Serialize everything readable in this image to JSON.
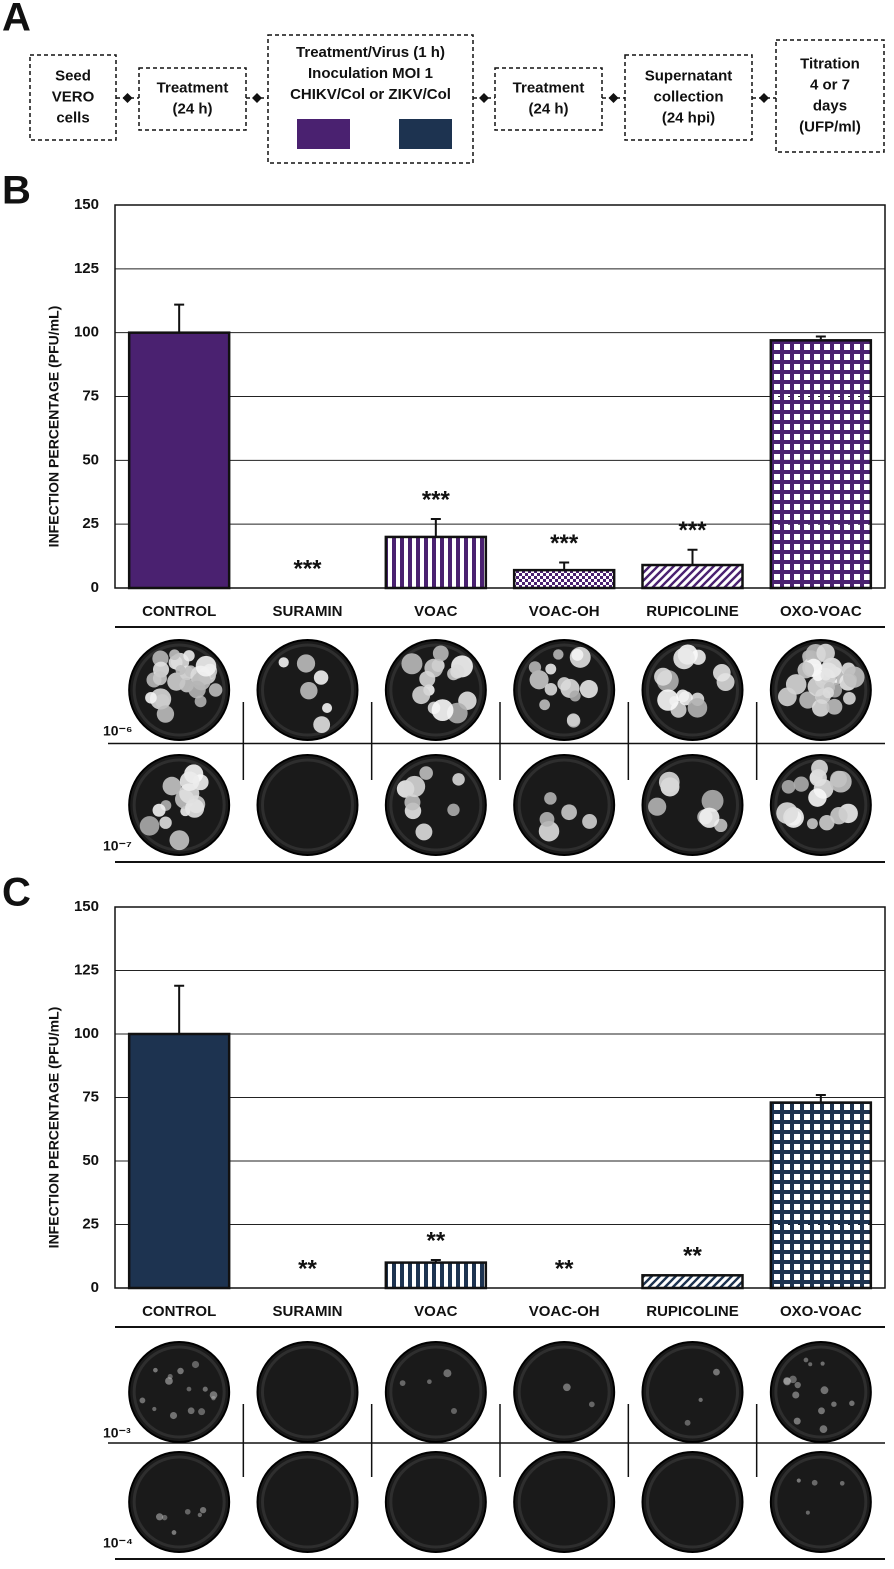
{
  "panel_a": {
    "label": "A",
    "boxes": [
      {
        "lines": [
          "Seed",
          "VERO",
          "cells"
        ]
      },
      {
        "lines": [
          "Treatment",
          "(24 h)"
        ]
      },
      {
        "lines": [
          "Treatment/Virus (1 h)",
          "Inoculation MOI 1",
          "CHIKV/Col or ZIKV/Col"
        ],
        "swatches": [
          "#4a2170",
          "#1d3350"
        ]
      },
      {
        "lines": [
          "Treatment",
          "(24 h)"
        ]
      },
      {
        "lines": [
          "Supernatant",
          "collection",
          "(24 hpi)"
        ]
      },
      {
        "lines": [
          "Titration",
          "4 or 7",
          "days",
          "(UFP/ml)"
        ]
      }
    ]
  },
  "chart_data": [
    {
      "type": "bar",
      "panel_label": "B",
      "y_label": "INFECTION PERCENTAGE (PFU/mL)",
      "categories": [
        "CONTROL",
        "SURAMIN",
        "VOAC",
        "VOAC-OH",
        "RUPICOLINE",
        "OXO-VOAC"
      ],
      "values": [
        100,
        0,
        20,
        7,
        9,
        97
      ],
      "errors": [
        11,
        0,
        7,
        3,
        6,
        1.5
      ],
      "annotations": [
        null,
        "***",
        "***",
        "***",
        "***",
        null
      ],
      "color": "#4a2170",
      "patterns": [
        "solid",
        "solid",
        "vertical",
        "dots",
        "diagonal",
        "checker"
      ],
      "ylim": [
        0,
        150
      ],
      "yticks": [
        0,
        25,
        50,
        75,
        100,
        125,
        150
      ],
      "grid": true,
      "dilutions": [
        "10⁻⁶",
        "10⁻⁷"
      ]
    },
    {
      "type": "bar",
      "panel_label": "C",
      "y_label": "INFECTION PERCENTAGE (PFU/mL)",
      "categories": [
        "CONTROL",
        "SURAMIN",
        "VOAC",
        "VOAC-OH",
        "RUPICOLINE",
        "OXO-VOAC"
      ],
      "values": [
        100,
        0,
        10,
        0,
        5,
        73
      ],
      "errors": [
        19,
        0,
        1,
        0,
        0,
        3
      ],
      "annotations": [
        null,
        "**",
        "**",
        "**",
        "**",
        null
      ],
      "color": "#1d3350",
      "patterns": [
        "solid",
        "solid",
        "vertical",
        "dots",
        "diagonal",
        "checker"
      ],
      "ylim": [
        0,
        150
      ],
      "yticks": [
        0,
        25,
        50,
        75,
        100,
        125,
        150
      ],
      "grid": true,
      "dilutions": [
        "10⁻³",
        "10⁻⁴"
      ]
    }
  ]
}
